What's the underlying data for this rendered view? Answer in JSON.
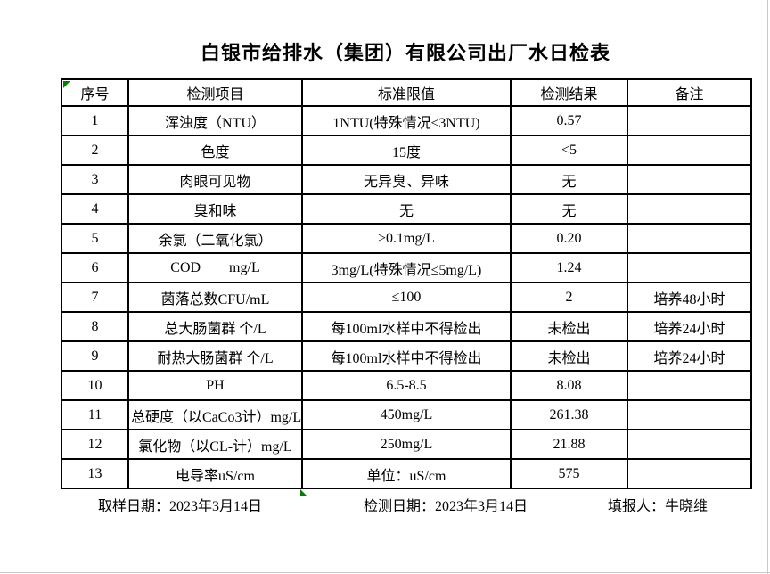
{
  "title": "白银市给排水（集团）有限公司出厂水日检表",
  "table": {
    "headers": [
      "序号",
      "检测项目",
      "标准限值",
      "检测结果",
      "备注"
    ],
    "rows": [
      [
        "1",
        "浑浊度（NTU）",
        "1NTU(特殊情况≤3NTU)",
        "0.57",
        ""
      ],
      [
        "2",
        "色度",
        "15度",
        "<5",
        ""
      ],
      [
        "3",
        "肉眼可见物",
        "无异臭、异味",
        "无",
        ""
      ],
      [
        "4",
        "臭和味",
        "无",
        "无",
        ""
      ],
      [
        "5",
        "余氯（二氧化氯）",
        "≥0.1mg/L",
        "0.20",
        ""
      ],
      [
        "6",
        "COD        mg/L",
        "3mg/L(特殊情况≤5mg/L)",
        "1.24",
        ""
      ],
      [
        "7",
        "菌落总数CFU/mL",
        "≤100",
        "2",
        "培养48小时"
      ],
      [
        "8",
        "总大肠菌群 个/L",
        "每100ml水样中不得检出",
        "未检出",
        "培养24小时"
      ],
      [
        "9",
        "耐热大肠菌群 个/L",
        "每100ml水样中不得检出",
        "未检出",
        "培养24小时"
      ],
      [
        "10",
        "PH",
        "6.5-8.5",
        "8.08",
        ""
      ],
      [
        "11",
        "总硬度（以CaCo3计）mg/L",
        "450mg/L",
        "261.38",
        ""
      ],
      [
        "12",
        "氯化物（以CL-计）mg/L",
        "250mg/L",
        "21.88",
        ""
      ],
      [
        "13",
        "电导率uS/cm",
        "单位：uS/cm",
        "575",
        ""
      ]
    ]
  },
  "footer": {
    "sampling_date": "取样日期：2023年3月14日",
    "test_date": "检测日期：2023年3月14日",
    "reporter": "填报人：牛晓维"
  },
  "colors": {
    "grid_line": "#000000",
    "indicator_green": "#008000",
    "page_edge": "#c9c9c9"
  }
}
